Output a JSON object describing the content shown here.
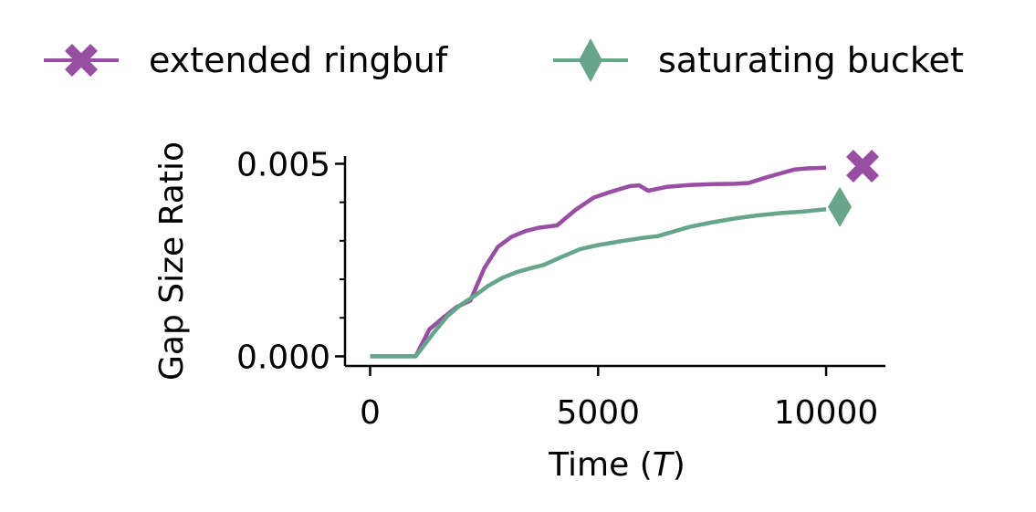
{
  "chart_data": {
    "type": "line",
    "title": "",
    "xlabel": "Time (",
    "xlabel_italic": "T",
    "xlabel_suffix": ")",
    "ylabel": "Gap Size Ratio",
    "xlim": [
      -550,
      11300
    ],
    "ylim": [
      -0.00025,
      0.0052
    ],
    "x_ticks": [
      0,
      5000,
      10000
    ],
    "x_tick_labels": [
      "0",
      "5000",
      "10000"
    ],
    "y_ticks": [
      0.0,
      0.005
    ],
    "y_tick_labels": [
      "0.000",
      "0.005"
    ],
    "y_minor_ticks": [
      0.001,
      0.002,
      0.003,
      0.004
    ],
    "grid": false,
    "legend_position": "top",
    "series": [
      {
        "name": "extended ringbuf",
        "color": "#984ea3",
        "marker": "x-filled",
        "end_marker": {
          "x": 10800,
          "y": 0.00494
        },
        "x": [
          0,
          1000,
          1300,
          1600,
          1900,
          2200,
          2500,
          2800,
          3100,
          3400,
          3700,
          4100,
          4500,
          4900,
          5300,
          5700,
          5900,
          6100,
          6500,
          7000,
          7500,
          8000,
          8300,
          8700,
          9000,
          9300,
          9600,
          10000
        ],
        "y": [
          0.0,
          0.0,
          0.0007,
          0.001,
          0.00128,
          0.00145,
          0.00228,
          0.00284,
          0.0031,
          0.00325,
          0.00334,
          0.0034,
          0.0038,
          0.00412,
          0.00428,
          0.00442,
          0.00444,
          0.0043,
          0.0044,
          0.00445,
          0.00447,
          0.00448,
          0.0045,
          0.00465,
          0.00475,
          0.00485,
          0.00488,
          0.0049
        ]
      },
      {
        "name": "saturating bucket",
        "color": "#66a58a",
        "marker": "thin-diamond",
        "end_marker": {
          "x": 10300,
          "y": 0.00388
        },
        "x": [
          0,
          1000,
          1400,
          1700,
          2000,
          2300,
          2600,
          2900,
          3200,
          3500,
          3800,
          4200,
          4600,
          5000,
          5500,
          6000,
          6300,
          7000,
          7500,
          8000,
          8500,
          9000,
          9500,
          10000
        ],
        "y": [
          0.0,
          0.0,
          0.00062,
          0.00105,
          0.00135,
          0.00158,
          0.00184,
          0.00204,
          0.00218,
          0.00228,
          0.00237,
          0.00258,
          0.00278,
          0.00289,
          0.00299,
          0.00308,
          0.00312,
          0.00336,
          0.00348,
          0.00358,
          0.00366,
          0.00372,
          0.00376,
          0.00382
        ]
      }
    ]
  }
}
